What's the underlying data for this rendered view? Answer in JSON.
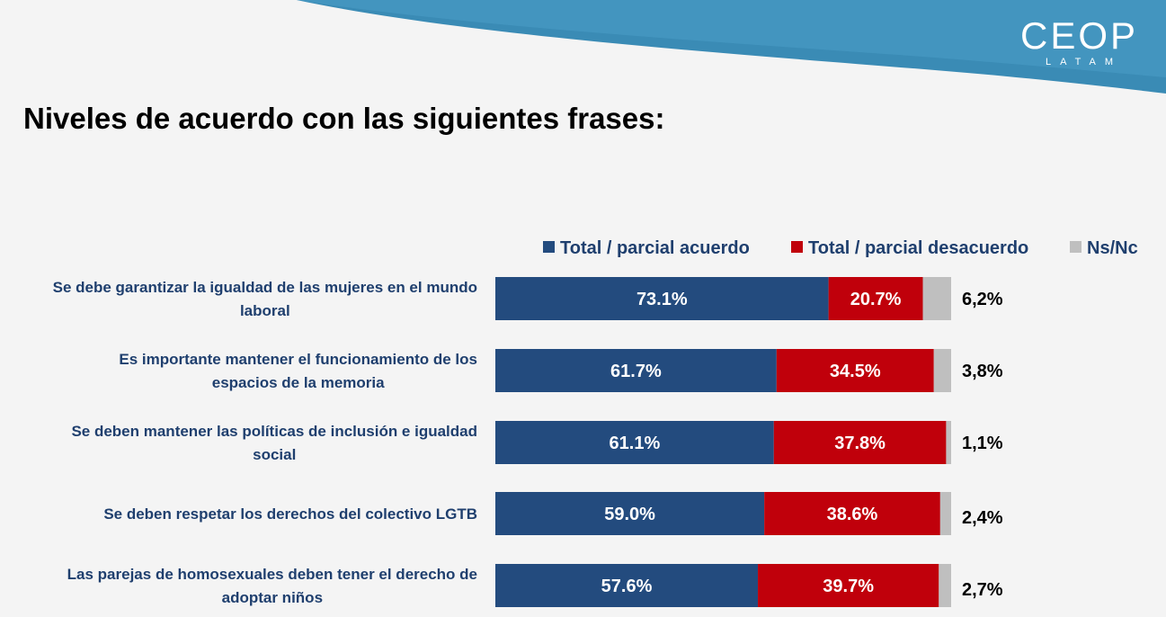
{
  "header": {
    "title": "Niveles de acuerdo con las siguientes frases:",
    "logo_main": "CEOP",
    "logo_sub": "LATAM"
  },
  "colors": {
    "acuerdo": "#234b7e",
    "desacuerdo": "#c0000b",
    "nsnc": "#bfbfbf",
    "header_wave": "#3a8bb5",
    "text_dark_blue": "#1f3f6e"
  },
  "chart_data": {
    "type": "bar",
    "orientation": "horizontal",
    "stacked": true,
    "legend_position": "top",
    "categories": [
      [
        "Se debe garantizar la igualdad de las mujeres en el mundo",
        "laboral"
      ],
      [
        "Es importante mantener el funcionamiento de los",
        "espacios de la memoria"
      ],
      [
        "Se deben mantener las políticas de inclusión e igualdad",
        "social"
      ],
      [
        "Se deben respetar los derechos del colectivo LGTB"
      ],
      [
        "Las parejas de homosexuales deben tener el derecho de",
        "adoptar niños"
      ]
    ],
    "series": [
      {
        "name": "Total / parcial acuerdo",
        "values": [
          73.1,
          61.7,
          61.1,
          59.0,
          57.6
        ],
        "labels": [
          "73.1%",
          "61.7%",
          "61.1%",
          "59.0%",
          "57.6%"
        ]
      },
      {
        "name": "Total / parcial desacuerdo",
        "values": [
          20.7,
          34.5,
          37.8,
          38.6,
          39.7
        ],
        "labels": [
          "20.7%",
          "34.5%",
          "37.8%",
          "38.6%",
          "39.7%"
        ]
      },
      {
        "name": "Ns/Nc",
        "values": [
          6.2,
          3.8,
          1.1,
          2.4,
          2.7
        ],
        "labels": [
          "6,2%",
          "3,8%",
          "1,1%",
          "2,4%",
          "2,7%"
        ]
      }
    ]
  }
}
